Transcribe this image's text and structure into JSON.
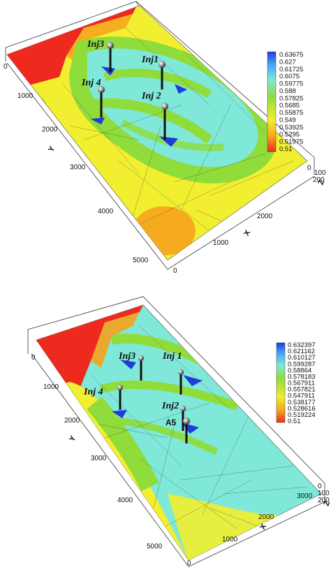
{
  "panels": [
    {
      "legend": [
        "0.63675",
        "0.627",
        "0.61725",
        "0.6075",
        "0.59775",
        "0.588",
        "0.57825",
        "0.5685",
        "0.55875",
        "0.549",
        "0.53925",
        "0.5295",
        "0.51975",
        "0.51"
      ],
      "wells": [
        "Inj3",
        "Inj1",
        "Inj 4",
        "Inj 2"
      ],
      "y_ticks": [
        "0",
        "1000",
        "2000",
        "3000",
        "4000",
        "5000"
      ],
      "x_ticks": [
        "0",
        "1000",
        "2000"
      ],
      "z_ticks": [
        "0",
        "100",
        "200"
      ],
      "axis_titles": {
        "x": "X",
        "y": "Y",
        "z": "Z"
      }
    },
    {
      "legend": [
        "0.632397",
        "0.621162",
        "0.610127",
        "0.599287",
        "0.58864",
        "0.578183",
        "0.567911",
        "0.557821",
        "0.547911",
        "0.538177",
        "0.528616",
        "0.519224",
        "0.51"
      ],
      "wells": [
        "Inj3",
        "Inj 1",
        "Inj 4",
        "Inj2",
        "A5"
      ],
      "y_ticks": [
        "0",
        "1000",
        "2000",
        "3000",
        "4000",
        "5000"
      ],
      "x_ticks": [
        "0",
        "1000",
        "2000",
        "3000"
      ],
      "z_ticks": [
        "0",
        "100",
        "200"
      ],
      "axis_titles": {
        "x": "X",
        "y": "Y",
        "z": "Z"
      }
    }
  ],
  "colors": {
    "high": "#1f3bd9",
    "cyan": "#7fe8d8",
    "green": "#8fdc3a",
    "yellow": "#f2ee30",
    "orange": "#f6a21c",
    "low": "#ee2a1e"
  }
}
